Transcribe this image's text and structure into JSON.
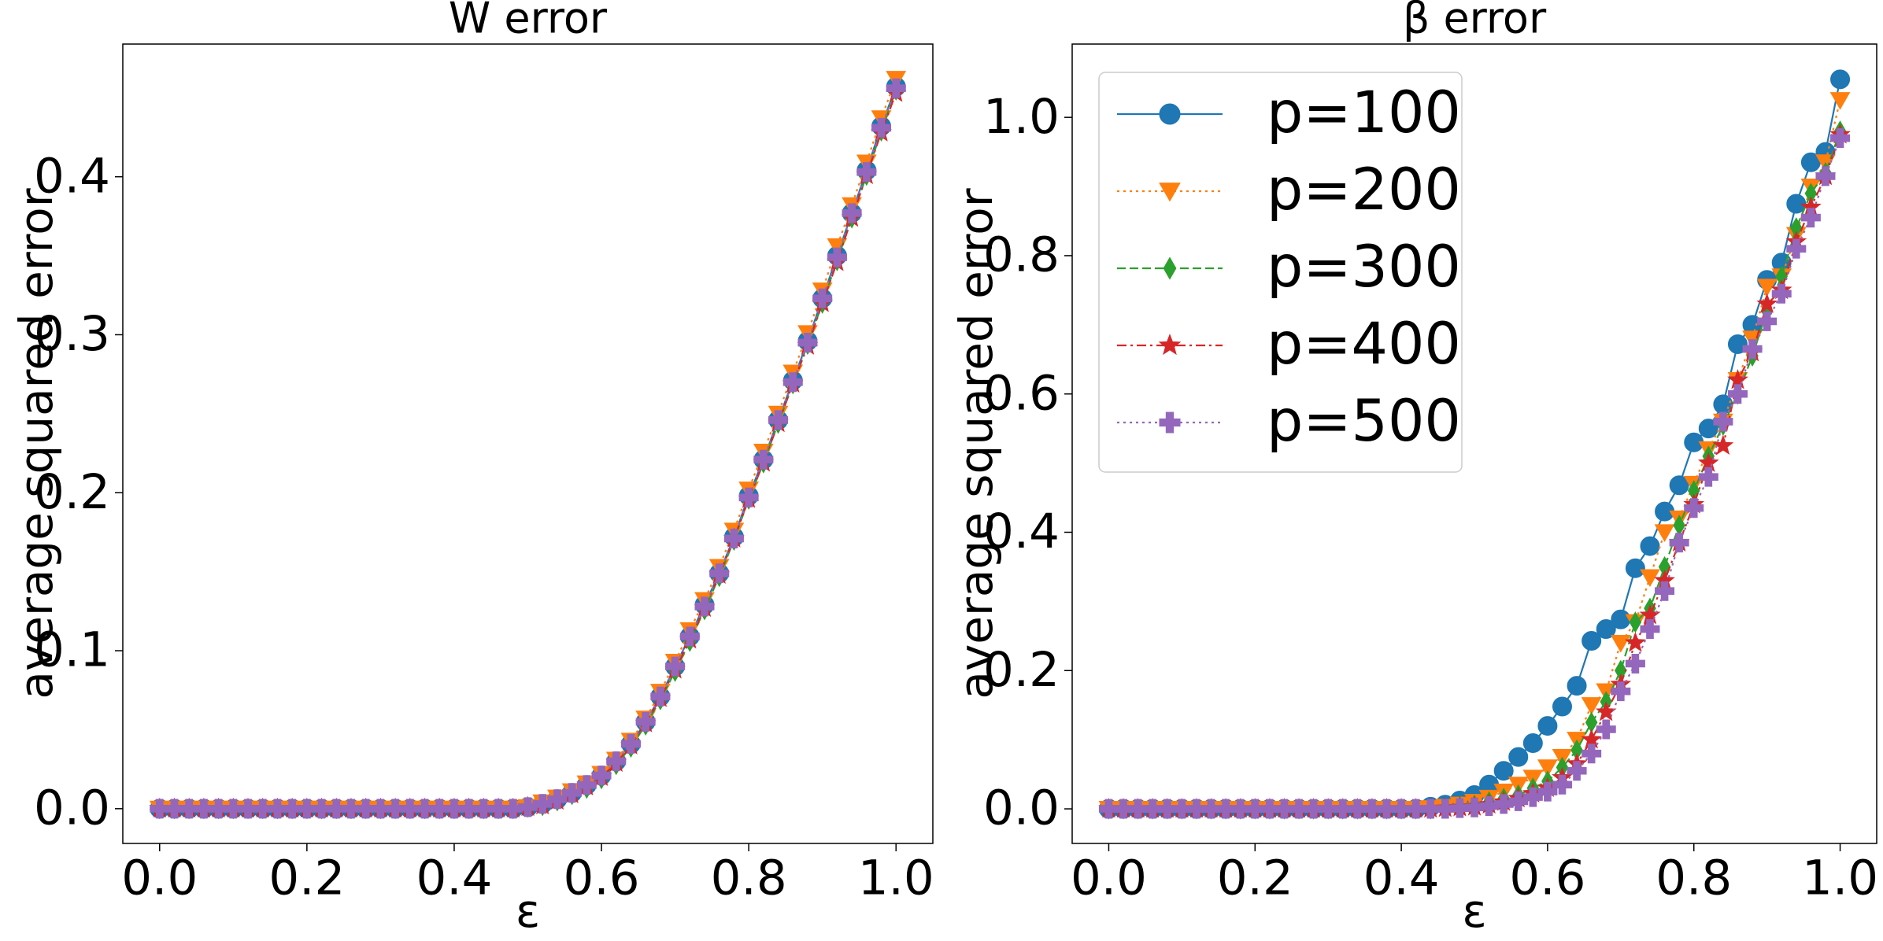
{
  "chart_data": [
    {
      "type": "line",
      "title": "W error",
      "xlabel": "ε",
      "ylabel": "average squared error",
      "x": [
        0,
        0.02,
        0.04,
        0.06,
        0.08,
        0.1,
        0.12,
        0.14,
        0.16,
        0.18,
        0.2,
        0.22,
        0.24,
        0.26,
        0.28,
        0.3,
        0.32,
        0.34,
        0.36,
        0.38,
        0.4,
        0.42,
        0.44,
        0.46,
        0.48,
        0.5,
        0.52,
        0.54,
        0.56,
        0.58,
        0.6,
        0.62,
        0.64,
        0.66,
        0.68,
        0.7,
        0.72,
        0.74,
        0.76,
        0.78,
        0.8,
        0.82,
        0.84,
        0.86,
        0.88,
        0.9,
        0.92,
        0.94,
        0.96,
        0.98,
        1
      ],
      "series": [
        {
          "color": "#1f77b4",
          "marker": "circle",
          "linestyle": "solid",
          "values": [
            0,
            0,
            0,
            0,
            0,
            0,
            0,
            0,
            0,
            0,
            0,
            0,
            0,
            0,
            0,
            0,
            0,
            0,
            0,
            0,
            0,
            0,
            0,
            0,
            0,
            0.001,
            0.003,
            0.006,
            0.01,
            0.015,
            0.021,
            0.03,
            0.041,
            0.055,
            0.071,
            0.09,
            0.109,
            0.129,
            0.149,
            0.172,
            0.198,
            0.221,
            0.246,
            0.271,
            0.296,
            0.323,
            0.35,
            0.377,
            0.404,
            0.432,
            0.457
          ]
        },
        {
          "color": "#ff7f0e",
          "marker": "triangle-down",
          "linestyle": "dotted",
          "values": [
            0,
            0,
            0,
            0,
            0,
            0,
            0,
            0,
            0,
            0,
            0,
            0,
            0,
            0,
            0,
            0,
            0,
            0,
            0,
            0,
            0,
            0,
            0,
            0,
            0,
            0.001,
            0.004,
            0.007,
            0.011,
            0.016,
            0.022,
            0.031,
            0.043,
            0.057,
            0.074,
            0.093,
            0.113,
            0.132,
            0.153,
            0.176,
            0.202,
            0.226,
            0.25,
            0.276,
            0.301,
            0.328,
            0.356,
            0.382,
            0.409,
            0.437,
            0.462
          ]
        },
        {
          "color": "#2ca02c",
          "marker": "thin-diamond",
          "linestyle": "dashed",
          "values": [
            0,
            0,
            0,
            0,
            0,
            0,
            0,
            0,
            0,
            0,
            0,
            0,
            0,
            0,
            0,
            0,
            0,
            0,
            0,
            0,
            0,
            0,
            0,
            0,
            0,
            0.001,
            0.002,
            0.005,
            0.009,
            0.013,
            0.019,
            0.028,
            0.039,
            0.053,
            0.069,
            0.087,
            0.106,
            0.126,
            0.147,
            0.17,
            0.196,
            0.219,
            0.244,
            0.269,
            0.294,
            0.32,
            0.347,
            0.374,
            0.401,
            0.429,
            0.455
          ]
        },
        {
          "color": "#d62728",
          "marker": "star",
          "linestyle": "dashdot",
          "values": [
            0,
            0,
            0,
            0,
            0,
            0,
            0,
            0,
            0,
            0,
            0,
            0,
            0,
            0,
            0,
            0,
            0,
            0,
            0,
            0,
            0,
            0,
            0,
            0,
            0,
            0.001,
            0.002,
            0.005,
            0.009,
            0.014,
            0.02,
            0.029,
            0.04,
            0.054,
            0.07,
            0.088,
            0.107,
            0.127,
            0.148,
            0.171,
            0.196,
            0.219,
            0.244,
            0.269,
            0.293,
            0.32,
            0.346,
            0.374,
            0.401,
            0.428,
            0.453
          ]
        },
        {
          "color": "#9467bd",
          "marker": "plus",
          "linestyle": "dotted",
          "values": [
            0,
            0,
            0,
            0,
            0,
            0,
            0,
            0,
            0,
            0,
            0,
            0,
            0,
            0,
            0,
            0,
            0,
            0,
            0,
            0,
            0,
            0,
            0,
            0,
            0,
            0.001,
            0.003,
            0.006,
            0.01,
            0.015,
            0.021,
            0.03,
            0.041,
            0.055,
            0.071,
            0.09,
            0.109,
            0.128,
            0.149,
            0.171,
            0.197,
            0.221,
            0.246,
            0.27,
            0.295,
            0.323,
            0.349,
            0.377,
            0.403,
            0.431,
            0.456
          ]
        }
      ],
      "xlim": [
        -0.05,
        1.05
      ],
      "ylim": [
        -0.022,
        0.484
      ],
      "xticks": [
        {
          "value": 0,
          "label": "0.0"
        },
        {
          "value": 0.2,
          "label": "0.2"
        },
        {
          "value": 0.4,
          "label": "0.4"
        },
        {
          "value": 0.6,
          "label": "0.6"
        },
        {
          "value": 0.8,
          "label": "0.8"
        },
        {
          "value": 1,
          "label": "1.0"
        }
      ],
      "yticks": [
        {
          "value": 0,
          "label": "0.0"
        },
        {
          "value": 0.1,
          "label": "0.1"
        },
        {
          "value": 0.2,
          "label": "0.2"
        },
        {
          "value": 0.3,
          "label": "0.3"
        },
        {
          "value": 0.4,
          "label": "0.4"
        }
      ]
    },
    {
      "type": "line",
      "title": "β error",
      "xlabel": "ε",
      "ylabel": "average squared error",
      "legend": "upper left",
      "x": [
        0,
        0.02,
        0.04,
        0.06,
        0.08,
        0.1,
        0.12,
        0.14,
        0.16,
        0.18,
        0.2,
        0.22,
        0.24,
        0.26,
        0.28,
        0.3,
        0.32,
        0.34,
        0.36,
        0.38,
        0.4,
        0.42,
        0.44,
        0.46,
        0.48,
        0.5,
        0.52,
        0.54,
        0.56,
        0.58,
        0.6,
        0.62,
        0.64,
        0.66,
        0.68,
        0.7,
        0.72,
        0.74,
        0.76,
        0.78,
        0.8,
        0.82,
        0.84,
        0.86,
        0.88,
        0.9,
        0.92,
        0.94,
        0.96,
        0.98,
        1
      ],
      "series": [
        {
          "name": "p=100",
          "color": "#1f77b4",
          "marker": "circle",
          "linestyle": "solid",
          "values": [
            0,
            0,
            0,
            0,
            0,
            0,
            0,
            0,
            0,
            0,
            0,
            0,
            0,
            0,
            0,
            0,
            0,
            0,
            0,
            0,
            0,
            0,
            0.003,
            0.006,
            0.012,
            0.02,
            0.035,
            0.055,
            0.075,
            0.095,
            0.12,
            0.148,
            0.178,
            0.243,
            0.26,
            0.274,
            0.348,
            0.38,
            0.43,
            0.468,
            0.53,
            0.55,
            0.585,
            0.672,
            0.7,
            0.765,
            0.79,
            0.875,
            0.935,
            0.95,
            1.055
          ]
        },
        {
          "name": "p=200",
          "color": "#ff7f0e",
          "marker": "triangle-down",
          "linestyle": "dotted",
          "values": [
            0,
            0,
            0,
            0,
            0,
            0,
            0,
            0,
            0,
            0,
            0,
            0,
            0,
            0,
            0,
            0,
            0,
            0,
            0,
            0,
            0,
            0,
            0.001,
            0.003,
            0.006,
            0.01,
            0.016,
            0.025,
            0.035,
            0.045,
            0.06,
            0.075,
            0.1,
            0.15,
            0.17,
            0.24,
            0.27,
            0.335,
            0.4,
            0.42,
            0.47,
            0.52,
            0.56,
            0.62,
            0.68,
            0.755,
            0.77,
            0.83,
            0.9,
            0.935,
            1.025
          ]
        },
        {
          "name": "p=300",
          "color": "#2ca02c",
          "marker": "thin-diamond",
          "linestyle": "dashed",
          "values": [
            0,
            0,
            0,
            0,
            0,
            0,
            0,
            0,
            0,
            0,
            0,
            0,
            0,
            0,
            0,
            0,
            0,
            0,
            0,
            0,
            0,
            0,
            0,
            0.001,
            0.003,
            0.005,
            0.01,
            0.015,
            0.02,
            0.03,
            0.04,
            0.06,
            0.085,
            0.125,
            0.155,
            0.2,
            0.27,
            0.29,
            0.35,
            0.41,
            0.46,
            0.51,
            0.555,
            0.6,
            0.655,
            0.72,
            0.77,
            0.84,
            0.89,
            0.92,
            0.98
          ]
        },
        {
          "name": "p=400",
          "color": "#d62728",
          "marker": "star",
          "linestyle": "dashdot",
          "values": [
            0,
            0,
            0,
            0,
            0,
            0,
            0,
            0,
            0,
            0,
            0,
            0,
            0,
            0,
            0,
            0,
            0,
            0,
            0,
            0,
            0,
            0,
            0,
            0.001,
            0.002,
            0.003,
            0.006,
            0.01,
            0.015,
            0.022,
            0.03,
            0.045,
            0.065,
            0.1,
            0.14,
            0.18,
            0.24,
            0.28,
            0.33,
            0.385,
            0.44,
            0.5,
            0.525,
            0.62,
            0.66,
            0.73,
            0.75,
            0.82,
            0.87,
            0.915,
            0.975
          ]
        },
        {
          "name": "p=500",
          "color": "#9467bd",
          "marker": "plus",
          "linestyle": "dotted",
          "values": [
            0,
            0,
            0,
            0,
            0,
            0,
            0,
            0,
            0,
            0,
            0,
            0,
            0,
            0,
            0,
            0,
            0,
            0,
            0,
            0,
            0,
            0,
            0,
            0,
            0.001,
            0.002,
            0.004,
            0.007,
            0.011,
            0.017,
            0.025,
            0.035,
            0.055,
            0.08,
            0.115,
            0.17,
            0.21,
            0.26,
            0.315,
            0.385,
            0.435,
            0.48,
            0.56,
            0.6,
            0.665,
            0.705,
            0.745,
            0.81,
            0.855,
            0.915,
            0.97
          ]
        }
      ],
      "xlim": [
        -0.05,
        1.05
      ],
      "ylim": [
        -0.05,
        1.106
      ],
      "xticks": [
        {
          "value": 0,
          "label": "0.0"
        },
        {
          "value": 0.2,
          "label": "0.2"
        },
        {
          "value": 0.4,
          "label": "0.4"
        },
        {
          "value": 0.6,
          "label": "0.6"
        },
        {
          "value": 0.8,
          "label": "0.8"
        },
        {
          "value": 1,
          "label": "1.0"
        }
      ],
      "yticks": [
        {
          "value": 0,
          "label": "0.0"
        },
        {
          "value": 0.2,
          "label": "0.2"
        },
        {
          "value": 0.4,
          "label": "0.4"
        },
        {
          "value": 0.6,
          "label": "0.6"
        },
        {
          "value": 0.8,
          "label": "0.8"
        },
        {
          "value": 1,
          "label": "1.0"
        }
      ]
    }
  ]
}
